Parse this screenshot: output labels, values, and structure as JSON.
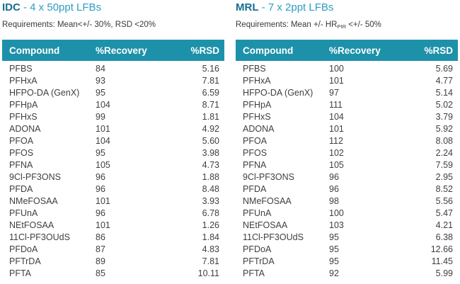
{
  "colors": {
    "header_bg": "#1E91AA",
    "title_bold": "#176E90",
    "title_rest": "#2E9CC4",
    "body_text": "#3f3f3f"
  },
  "panels": [
    {
      "title_bold": "IDC",
      "title_rest": " - 4 x 50ppt LFBs",
      "requirements": {
        "pre": "Requirements: Mean<+/- 30%, RSD <20%",
        "sub": "",
        "post": ""
      },
      "columns": [
        "Compound",
        "%Recovery",
        "%RSD"
      ],
      "rows": [
        [
          "PFBS",
          "84",
          "5.16"
        ],
        [
          "PFHxA",
          "93",
          "7.81"
        ],
        [
          "HFPO-DA (GenX)",
          "95",
          "6.59"
        ],
        [
          "PFHpA",
          "104",
          "8.71"
        ],
        [
          "PFHxS",
          "99",
          "1.81"
        ],
        [
          "ADONA",
          "101",
          "4.92"
        ],
        [
          "PFOA",
          "104",
          "5.60"
        ],
        [
          "PFOS",
          "95",
          "3.98"
        ],
        [
          "PFNA",
          "105",
          "4.73"
        ],
        [
          "9Cl-PF3ONS",
          "96",
          "1.88"
        ],
        [
          "PFDA",
          "96",
          "8.48"
        ],
        [
          "NMeFOSAA",
          "101",
          "3.93"
        ],
        [
          "PFUnA",
          "96",
          "6.78"
        ],
        [
          "NEtFOSAA",
          "101",
          "1.26"
        ],
        [
          "11Cl-PF3OUdS",
          "86",
          "1.84"
        ],
        [
          "PFDoA",
          "87",
          "4.83"
        ],
        [
          "PFTrDA",
          "89",
          "7.81"
        ],
        [
          "PFTA",
          "85",
          "10.11"
        ]
      ]
    },
    {
      "title_bold": "MRL",
      "title_rest": " - 7 x 2ppt LFBs",
      "requirements": {
        "pre": "Requirements: Mean +/- HR",
        "sub": "PIR",
        "post": " <+/- 50%"
      },
      "columns": [
        "Compound",
        "%Recovery",
        "%RSD"
      ],
      "rows": [
        [
          "PFBS",
          "100",
          "5.69"
        ],
        [
          "PFHxA",
          "101",
          "4.77"
        ],
        [
          "HFPO-DA (GenX)",
          "97",
          "5.14"
        ],
        [
          "PFHpA",
          "111",
          "5.02"
        ],
        [
          "PFHxS",
          "104",
          "3.79"
        ],
        [
          "ADONA",
          "101",
          "5.92"
        ],
        [
          "PFOA",
          "112",
          "8.08"
        ],
        [
          "PFOS",
          "102",
          "2.24"
        ],
        [
          "PFNA",
          "105",
          "7.59"
        ],
        [
          "9Cl-PF3ONS",
          "96",
          "2.95"
        ],
        [
          "PFDA",
          "96",
          "8.52"
        ],
        [
          "NMeFOSAA",
          "98",
          "5.56"
        ],
        [
          "PFUnA",
          "100",
          "5.47"
        ],
        [
          "NEtFOSAA",
          "103",
          "4.21"
        ],
        [
          "11Cl-PF3OUdS",
          "95",
          "6.38"
        ],
        [
          "PFDoA",
          "95",
          "12.66"
        ],
        [
          "PFTrDA",
          "95",
          "11.45"
        ],
        [
          "PFTA",
          "92",
          "5.99"
        ]
      ]
    }
  ]
}
